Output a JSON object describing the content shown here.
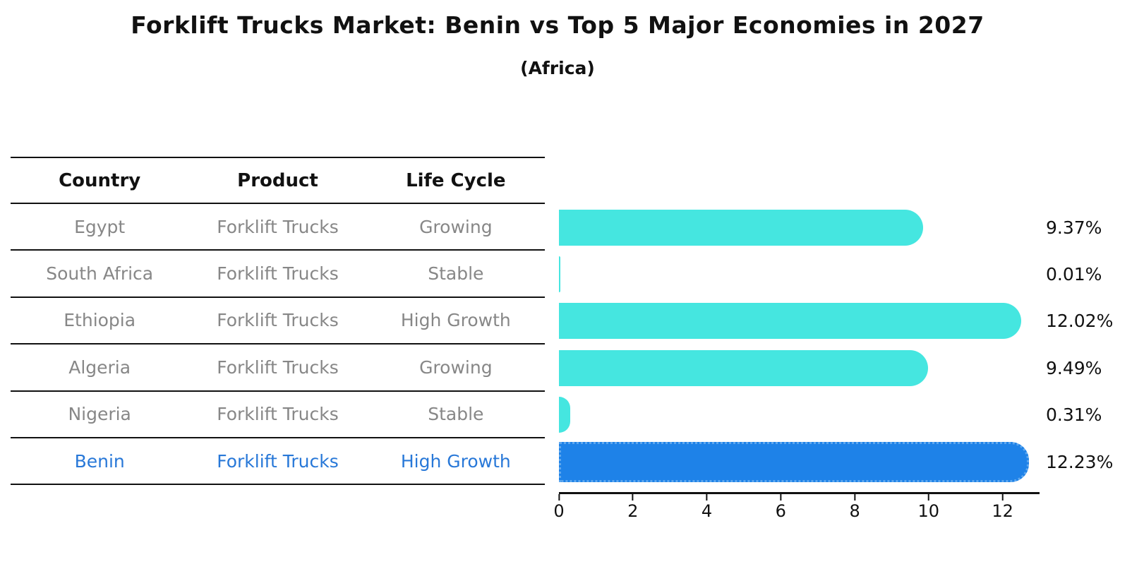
{
  "title": "Forklift Trucks Market: Benin vs Top 5 Major Economies in 2027",
  "subtitle": "(Africa)",
  "table": {
    "headers": [
      "Country",
      "Product",
      "Life Cycle"
    ],
    "rows": [
      {
        "country": "Egypt",
        "product": "Forklift Trucks",
        "life_cycle": "Growing",
        "highlight": false
      },
      {
        "country": "South Africa",
        "product": "Forklift Trucks",
        "life_cycle": "Stable",
        "highlight": false
      },
      {
        "country": "Ethiopia",
        "product": "Forklift Trucks",
        "life_cycle": "High Growth",
        "highlight": false
      },
      {
        "country": "Algeria",
        "product": "Forklift Trucks",
        "life_cycle": "Growing",
        "highlight": false
      },
      {
        "country": "Nigeria",
        "product": "Forklift Trucks",
        "life_cycle": "Stable",
        "highlight": false
      },
      {
        "country": "Benin",
        "product": "Forklift Trucks",
        "life_cycle": "High Growth",
        "highlight": true
      }
    ]
  },
  "chart_data": {
    "type": "bar",
    "orientation": "horizontal",
    "title": "Forklift Trucks Market: Benin vs Top 5 Major Economies in 2027",
    "subtitle": "(Africa)",
    "categories": [
      "Egypt",
      "South Africa",
      "Ethiopia",
      "Algeria",
      "Nigeria",
      "Benin"
    ],
    "values": [
      9.37,
      0.01,
      12.02,
      9.49,
      0.31,
      12.23
    ],
    "value_labels": [
      "9.37%",
      "0.01%",
      "12.02%",
      "9.49%",
      "0.31%",
      "12.23%"
    ],
    "unit": "%",
    "xticks": [
      0,
      2,
      4,
      6,
      8,
      10,
      12
    ],
    "xlim": [
      0,
      13
    ],
    "grid": false,
    "legend": false,
    "highlight_category": "Benin"
  },
  "colors": {
    "bar": "#45e6e0",
    "highlight_bar": "#1e82e8",
    "highlight_bar_dot": "#5fa8ee",
    "highlight_text": "#2878d8",
    "table_text": "#878787",
    "axis_text": "#111111"
  }
}
